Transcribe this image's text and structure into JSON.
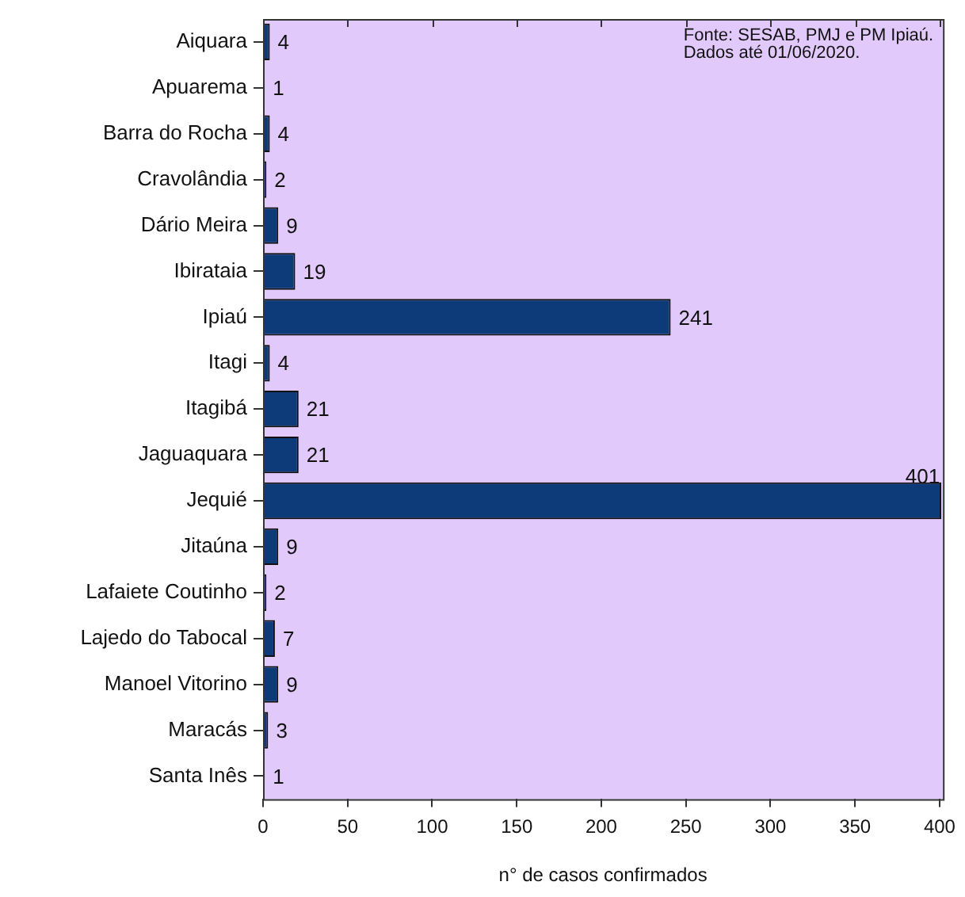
{
  "chart_data": {
    "type": "bar",
    "orientation": "horizontal",
    "xlabel": "n° de casos confirmados",
    "categories": [
      "Aiquara",
      "Apuarema",
      "Barra do Rocha",
      "Cravolândia",
      "Dário Meira",
      "Ibirataia",
      "Ipiaú",
      "Itagi",
      "Itagibá",
      "Jaguaquara",
      "Jequié",
      "Jitaúna",
      "Lafaiete Coutinho",
      "Lajedo do Tabocal",
      "Manoel Vitorino",
      "Maracás",
      "Santa Inês"
    ],
    "values": [
      4,
      1,
      4,
      2,
      9,
      19,
      241,
      4,
      21,
      21,
      401,
      9,
      2,
      7,
      9,
      3,
      1
    ],
    "color": "#0d3a78",
    "data_labels": true,
    "xlim": [
      0,
      402
    ],
    "xticks": [
      0,
      50,
      100,
      150,
      200,
      250,
      300,
      350,
      400
    ],
    "grid": false,
    "annotations": [
      "Fonte: SESAB, PMJ e PM Ipiaú.\nDados até 01/06/2020."
    ]
  }
}
